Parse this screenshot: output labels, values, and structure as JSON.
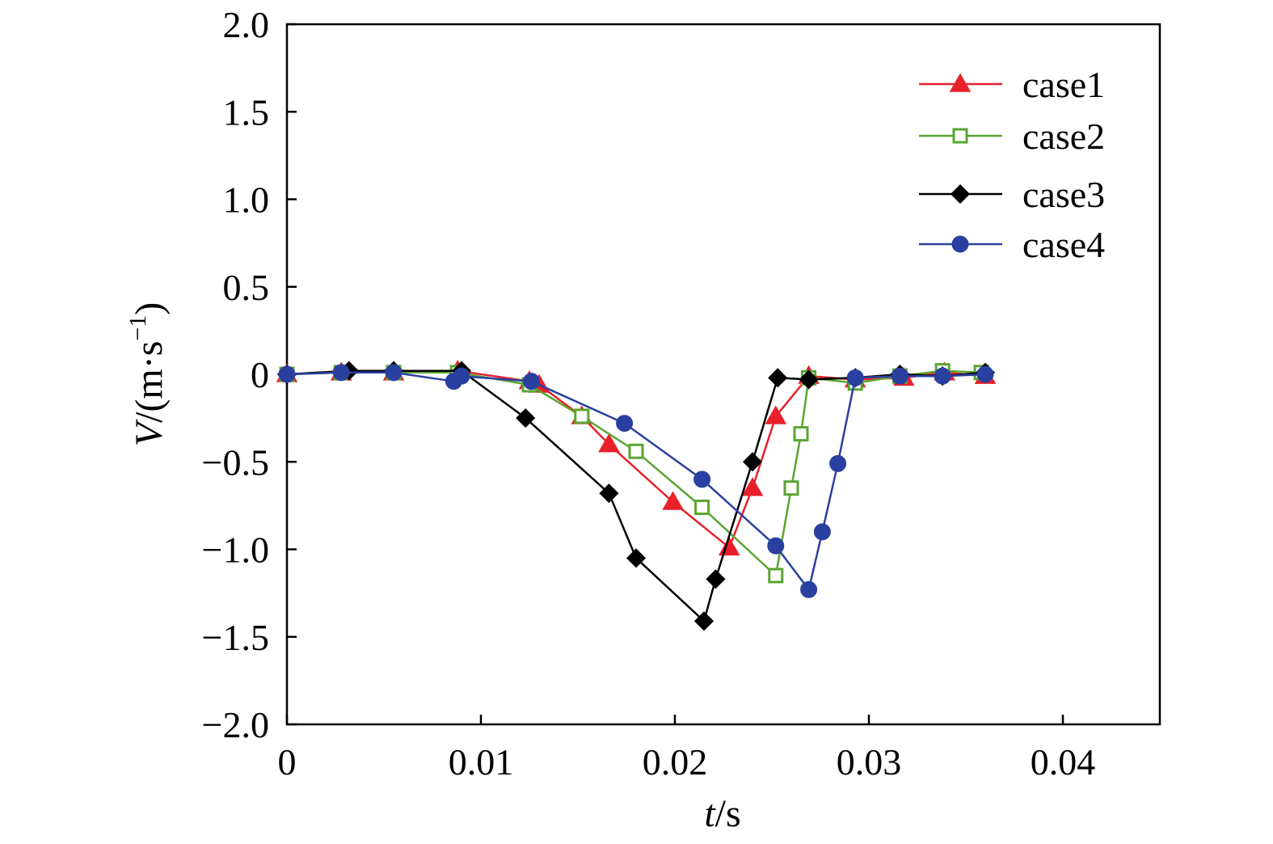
{
  "chart_data": {
    "type": "line",
    "xlabel_var": "t",
    "xlabel_unit": "/s",
    "ylabel_var": "V",
    "ylabel_unit_pre": "/(m·s",
    "ylabel_unit_exp": "−1",
    "ylabel_unit_post": ")",
    "xlim": [
      0,
      0.045
    ],
    "ylim": [
      -2.0,
      2.0
    ],
    "x_ticks": [
      {
        "value": 0,
        "label": "0"
      },
      {
        "value": 0.01,
        "label": "0.01"
      },
      {
        "value": 0.02,
        "label": "0.02"
      },
      {
        "value": 0.03,
        "label": "0.03"
      },
      {
        "value": 0.04,
        "label": "0.04"
      }
    ],
    "y_ticks": [
      {
        "value": 2.0,
        "label": "2.0"
      },
      {
        "value": 1.5,
        "label": "1.5"
      },
      {
        "value": 1.0,
        "label": "1.0"
      },
      {
        "value": 0.5,
        "label": "0.5"
      },
      {
        "value": 0,
        "label": "0"
      },
      {
        "value": -0.5,
        "label": "−0.5"
      },
      {
        "value": -1.0,
        "label": "−1.0"
      },
      {
        "value": -1.5,
        "label": "−1.5"
      },
      {
        "value": -2.0,
        "label": "−2.0"
      }
    ],
    "grid": false,
    "legend_position": "top-right",
    "series": [
      {
        "name": "case1",
        "color": "#e8202a",
        "marker": "triangle-filled",
        "x": [
          0,
          0.0028,
          0.0055,
          0.0088,
          0.0125,
          0.013,
          0.0152,
          0.0166,
          0.0199,
          0.0228,
          0.024,
          0.0252,
          0.0269,
          0.0293,
          0.0318,
          0.0339,
          0.036
        ],
        "y": [
          0,
          0.01,
          0.01,
          0.02,
          -0.04,
          -0.06,
          -0.24,
          -0.4,
          -0.73,
          -0.99,
          -0.65,
          -0.24,
          -0.01,
          -0.03,
          -0.02,
          0.01,
          -0.01
        ]
      },
      {
        "name": "case2",
        "color": "#5aa532",
        "marker": "square-open",
        "x": [
          0,
          0.0028,
          0.0055,
          0.0088,
          0.0125,
          0.0152,
          0.018,
          0.0214,
          0.0252,
          0.026,
          0.0265,
          0.0269,
          0.0293,
          0.0316,
          0.0338,
          0.0358
        ],
        "y": [
          0,
          0.01,
          0.01,
          0.01,
          -0.06,
          -0.24,
          -0.44,
          -0.76,
          -1.15,
          -0.65,
          -0.34,
          -0.02,
          -0.05,
          -0.01,
          0.02,
          0.01
        ]
      },
      {
        "name": "case3",
        "color": "#000000",
        "marker": "diamond-filled",
        "x": [
          0,
          0.0032,
          0.0055,
          0.009,
          0.0123,
          0.0166,
          0.018,
          0.0215,
          0.0221,
          0.024,
          0.0253,
          0.0269,
          0.0293,
          0.0316,
          0.0338,
          0.036
        ],
        "y": [
          0,
          0.02,
          0.02,
          0.02,
          -0.25,
          -0.68,
          -1.05,
          -1.41,
          -1.17,
          -0.5,
          -0.02,
          -0.03,
          -0.02,
          0.0,
          -0.01,
          0.01
        ]
      },
      {
        "name": "case4",
        "color": "#2a40a0",
        "marker": "circle-filled",
        "x": [
          0,
          0.0028,
          0.0055,
          0.0086,
          0.009,
          0.0126,
          0.0174,
          0.0214,
          0.0252,
          0.0269,
          0.0276,
          0.0284,
          0.0293,
          0.0316,
          0.0338,
          0.036
        ],
        "y": [
          0,
          0.01,
          0.01,
          -0.04,
          -0.01,
          -0.04,
          -0.28,
          -0.6,
          -0.98,
          -1.23,
          -0.9,
          -0.51,
          -0.02,
          -0.01,
          -0.01,
          0.0
        ]
      }
    ]
  }
}
